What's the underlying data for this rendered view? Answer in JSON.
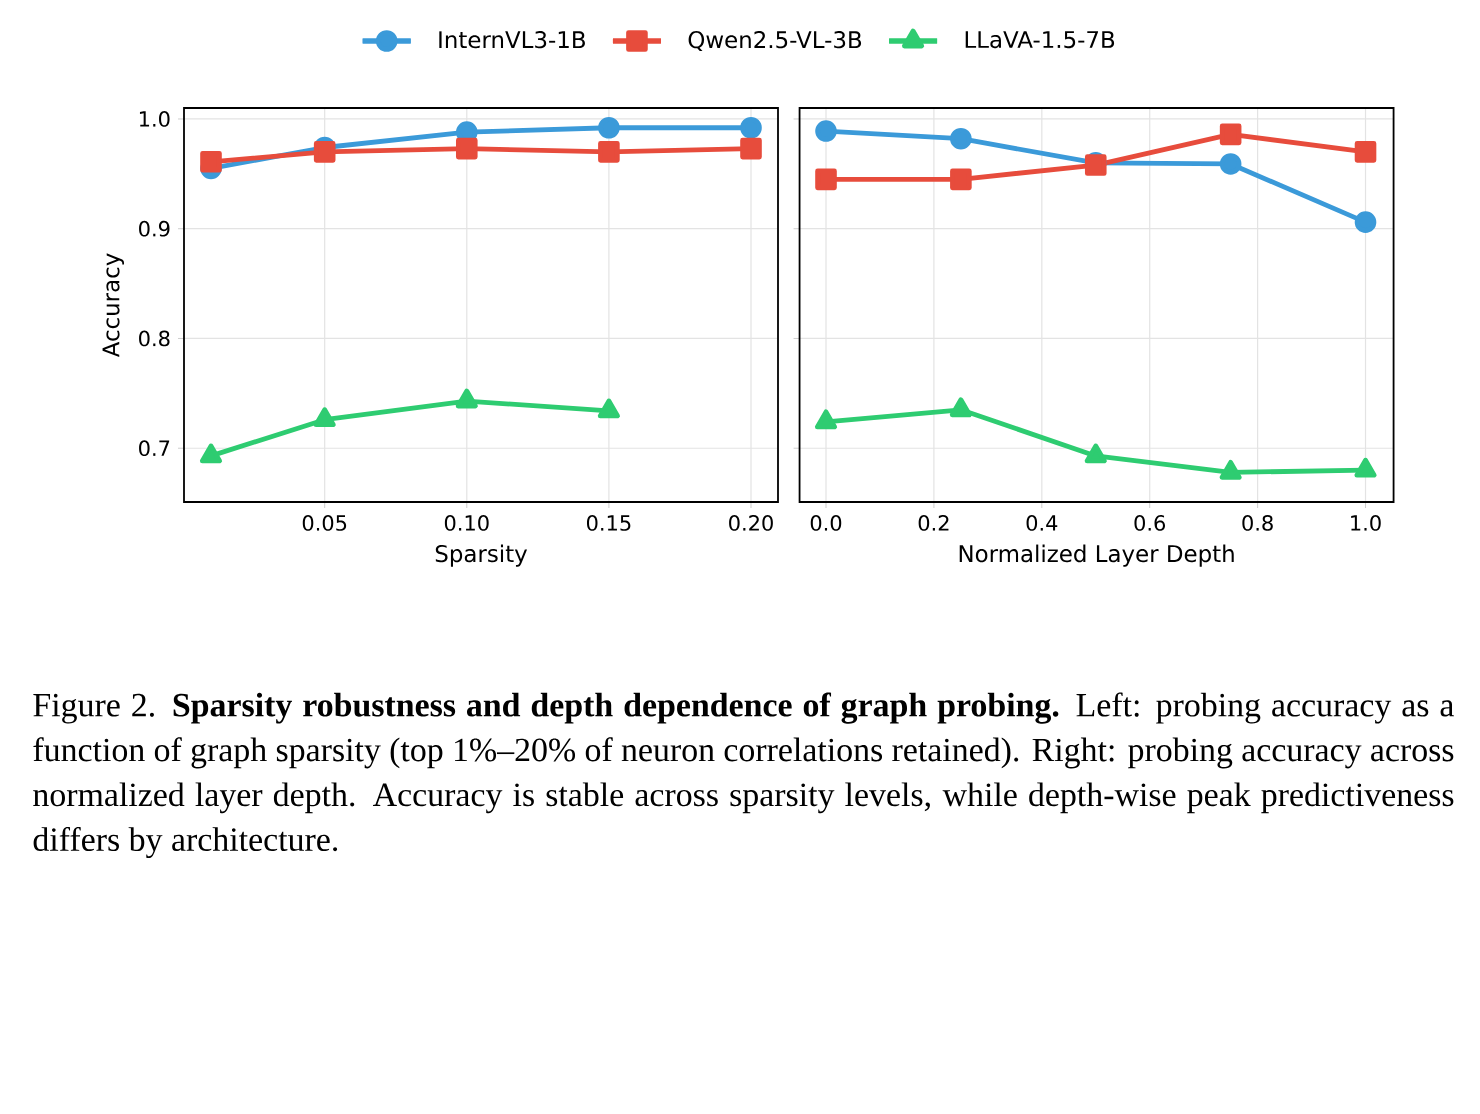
{
  "chart_data": [
    {
      "type": "line",
      "x": [
        0.01,
        0.05,
        0.1,
        0.15,
        0.2
      ],
      "xlabel": "Sparsity",
      "ylabel": "Accuracy",
      "xlim": [
        0.0005,
        0.2095
      ],
      "ylim": [
        0.651,
        1.01
      ],
      "xticks": [
        0.05,
        {
          "value": 0.1,
          "label": "0.10"
        },
        0.15,
        {
          "value": 0.2,
          "label": "0.20"
        }
      ],
      "yticks": [
        0.7,
        0.8,
        0.9,
        {
          "value": 1.0,
          "label": "1.0"
        }
      ],
      "grid": true,
      "legend": "top",
      "series": [
        {
          "name": "InternVL3-1B",
          "color": "#3b9ad9",
          "marker": "circle",
          "values": [
            0.955,
            0.974,
            0.988,
            0.992,
            0.992
          ]
        },
        {
          "name": "Qwen2.5-VL-3B",
          "color": "#e74c3c",
          "marker": "square",
          "values": [
            0.961,
            0.97,
            0.973,
            0.97,
            0.973
          ]
        },
        {
          "name": "LLaVA-1.5-7B",
          "color": "#2ecc71",
          "marker": "triangle",
          "values": [
            0.693,
            0.726,
            0.743,
            0.734,
            null
          ]
        }
      ],
      "annotations": [
        "Figure 2. **Sparsity robustness and depth dependence of graph probing.** Left: probing accuracy as a function of graph sparsity (top 1%–20% of neuron correlations retained). Right: probing accuracy across normalized layer depth.  Accuracy is stable across sparsity levels, while depth-wise peak predictiveness differs by architecture."
      ]
    },
    {
      "type": "line",
      "x": [
        0.0,
        0.25,
        0.5,
        0.75,
        1.0
      ],
      "xlabel": "Normalized Layer Depth",
      "xlim": [
        -0.049,
        1.052
      ],
      "ylim": [
        0.651,
        1.01
      ],
      "xticks": [
        {
          "value": 0.0,
          "label": "0.0"
        },
        0.2,
        0.4,
        0.6,
        0.8,
        {
          "value": 1.0,
          "label": "1.0"
        }
      ],
      "yticks": [
        0.7,
        0.8,
        0.9,
        1.0
      ],
      "grid": true,
      "tick_labels": "x",
      "series": [
        {
          "color": "#3b9ad9",
          "marker": "circle",
          "values": [
            0.989,
            0.982,
            0.96,
            0.959,
            0.906
          ]
        },
        {
          "color": "#e74c3c",
          "marker": "square",
          "values": [
            0.945,
            0.945,
            0.958,
            0.986,
            0.97
          ]
        },
        {
          "color": "#2ecc71",
          "marker": "triangle",
          "values": [
            0.724,
            0.735,
            0.693,
            0.678,
            0.68
          ]
        }
      ]
    }
  ]
}
